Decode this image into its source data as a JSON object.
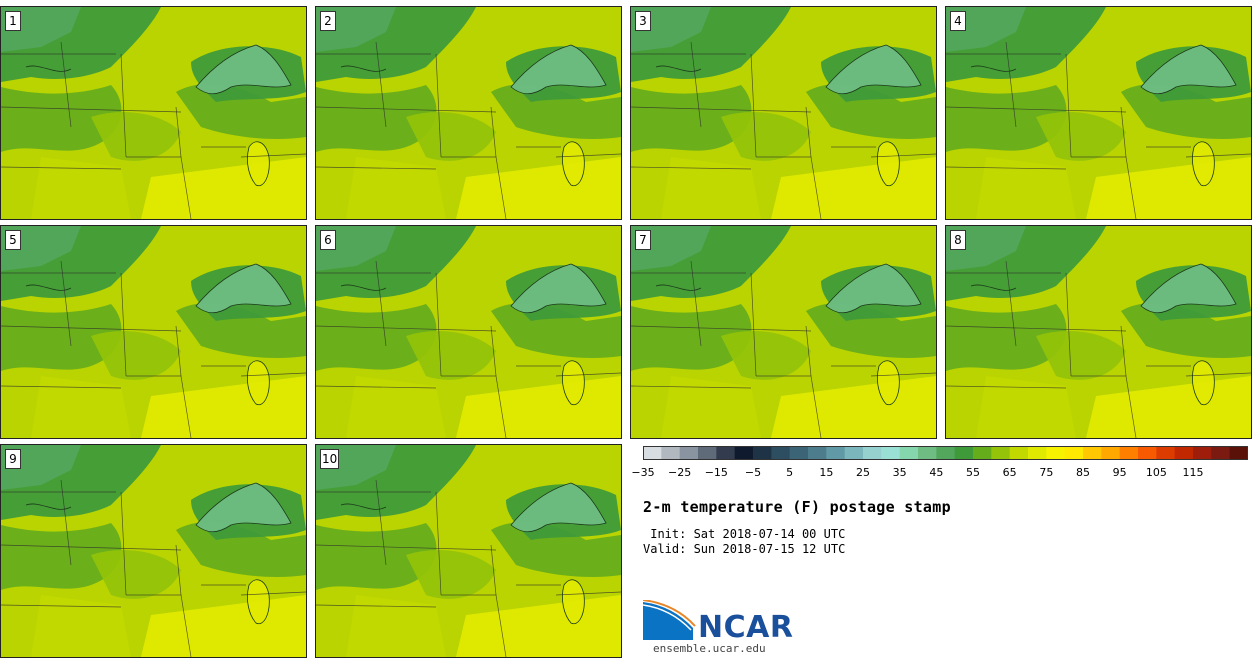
{
  "panels": [
    "1",
    "2",
    "3",
    "4",
    "5",
    "6",
    "7",
    "8",
    "9",
    "10"
  ],
  "colorbar": {
    "ticks": [
      "−35",
      "−25",
      "−15",
      "−5",
      "5",
      "15",
      "25",
      "35",
      "45",
      "55",
      "65",
      "75",
      "85",
      "95",
      "105",
      "115"
    ],
    "colors": [
      "#d8dde2",
      "#b1b8c0",
      "#8a94a0",
      "#606b7a",
      "#323c4e",
      "#0f1a2e",
      "#1f3347",
      "#2d4e60",
      "#3b6576",
      "#4d7d8c",
      "#6299a6",
      "#7bb6bd",
      "#96d0cf",
      "#9be0d4",
      "#86d6ad",
      "#6fbd83",
      "#53a75d",
      "#3f9b39",
      "#66ad1b",
      "#94c30a",
      "#c2d900",
      "#e0ea00",
      "#f7f200",
      "#ffe900",
      "#ffc800",
      "#ffa800",
      "#ff8000",
      "#f75a00",
      "#dd3c00",
      "#c22800",
      "#9e1e0b",
      "#7a1a10",
      "#5a1208"
    ]
  },
  "title": "2-m temperature (F) postage stamp",
  "init": " Init: Sat 2018-07-14 00 UTC",
  "valid": "Valid: Sun 2018-07-15 12 UTC",
  "logo": {
    "name": "NCAR",
    "site": "ensemble.ucar.edu"
  }
}
